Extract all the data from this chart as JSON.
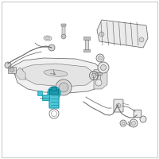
{
  "bg_color": "#ffffff",
  "border_color": "#cccccc",
  "line_color": "#666666",
  "highlight_fill": "#4dc8d8",
  "highlight_edge": "#1a9db0",
  "highlight_dark": "#0d7a8a",
  "gray_fill": "#e8e8e8",
  "gray_mid": "#d8d8d8",
  "gray_dark": "#c0c0c0",
  "fig_width": 2.0,
  "fig_height": 2.0,
  "dpi": 100
}
